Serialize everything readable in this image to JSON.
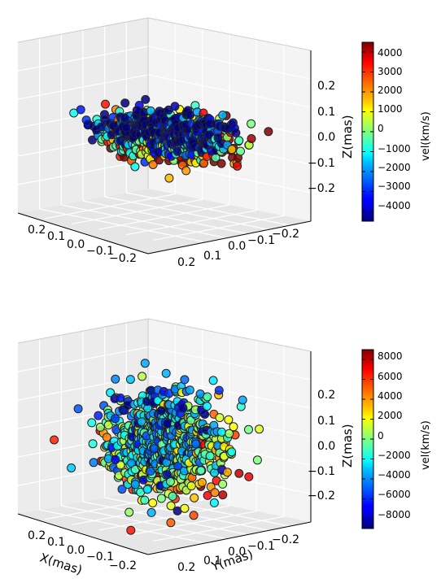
{
  "chart_data": [
    {
      "type": "scatter",
      "title": "",
      "xlabel": "",
      "ylabel": "",
      "zlabel": "Z(mas)",
      "x_ticks": [
        "0.2",
        "0.1",
        "0.0",
        "−0.1",
        "−0.2"
      ],
      "y_ticks": [
        "0.2",
        "0.1",
        "0.0",
        "−0.1",
        "−0.2"
      ],
      "z_ticks": [
        "0.2",
        "0.1",
        "0.0",
        "−0.1",
        "−0.2"
      ],
      "xlim": [
        -0.3,
        0.3
      ],
      "ylim": [
        -0.3,
        0.3
      ],
      "zlim": [
        -0.3,
        0.3
      ],
      "grid": true,
      "colormap": "jet",
      "colorbar": {
        "label": "vel(km/s)",
        "range": [
          -4500,
          4500
        ],
        "ticks": [
          "4000",
          "3000",
          "2000",
          "1000",
          "0",
          "−1000",
          "−2000",
          "−3000",
          "−4000"
        ]
      },
      "distribution": "flattened rotating disk, ~1000 points, velocity gradient along the disk",
      "n_points": 1000
    },
    {
      "type": "scatter",
      "title": "",
      "xlabel": "X(mas)",
      "ylabel": "Y(mas)",
      "zlabel": "Z(mas)",
      "x_ticks": [
        "0.2",
        "0.1",
        "0.0",
        "−0.1",
        "−0.2"
      ],
      "y_ticks": [
        "0.2",
        "0.1",
        "0.0",
        "−0.1",
        "−0.2"
      ],
      "z_ticks": [
        "0.2",
        "0.1",
        "0.0",
        "−0.1",
        "−0.2"
      ],
      "xlim": [
        -0.3,
        0.3
      ],
      "ylim": [
        -0.3,
        0.3
      ],
      "zlim": [
        -0.3,
        0.3
      ],
      "grid": true,
      "colormap": "jet",
      "colorbar": {
        "label": "vel(km/s)",
        "range": [
          -9000,
          9000
        ],
        "ticks": [
          "8000",
          "6000",
          "4000",
          "2000",
          "0",
          "−2000",
          "−4000",
          "−6000",
          "−8000"
        ]
      },
      "distribution": "spherical cluster, ~1000 points, mild velocity gradient",
      "n_points": 1000
    }
  ]
}
